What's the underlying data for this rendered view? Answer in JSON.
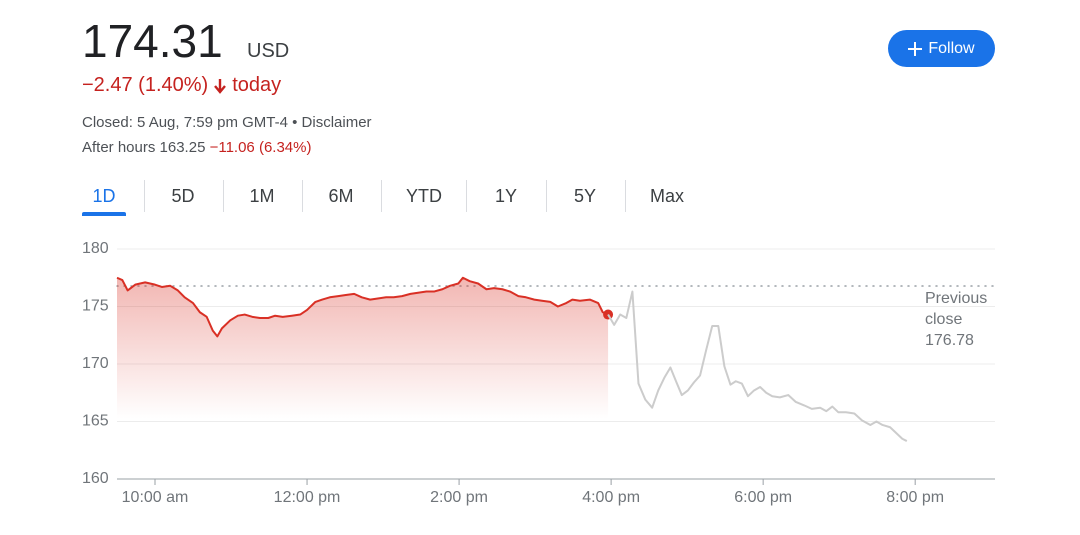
{
  "header": {
    "price": "174.31",
    "currency": "USD",
    "change": "−2.47 (1.40%)",
    "change_suffix": "today",
    "closed": "Closed: 5 Aug, 7:59 pm GMT-4 •",
    "disclaimer": "Disclaimer",
    "after_hours": "After hours 163.25",
    "after_hours_change": "−11.06 (6.34%)",
    "follow": "Follow"
  },
  "tabs": [
    "1D",
    "5D",
    "1M",
    "6M",
    "YTD",
    "1Y",
    "5Y",
    "Max"
  ],
  "chart_data": {
    "type": "line",
    "xlim": [
      9.5,
      21.05
    ],
    "ylim": [
      160,
      180
    ],
    "xticks": [
      {
        "value": 10,
        "label": "10:00 am"
      },
      {
        "value": 12,
        "label": "12:00 pm"
      },
      {
        "value": 14,
        "label": "2:00 pm"
      },
      {
        "value": 16,
        "label": "4:00 pm"
      },
      {
        "value": 18,
        "label": "6:00 pm"
      },
      {
        "value": 20,
        "label": "8:00 pm"
      }
    ],
    "yticks": [
      160,
      165,
      170,
      175,
      180
    ],
    "grid": true,
    "previous_close": 176.78,
    "previous_close_label": "Previous close",
    "series": [
      {
        "color": "#d93025",
        "x": [
          9.5,
          9.57,
          9.64,
          9.74,
          9.87,
          10.0,
          10.09,
          10.2,
          10.3,
          10.39,
          10.5,
          10.59,
          10.68,
          10.76,
          10.82,
          10.88,
          10.99,
          11.09,
          11.18,
          11.28,
          11.38,
          11.49,
          11.58,
          11.68,
          11.8,
          11.91,
          12.0,
          12.11,
          12.2,
          12.3,
          12.41,
          12.51,
          12.62,
          12.72,
          12.83,
          12.93,
          13.04,
          13.14,
          13.25,
          13.36,
          13.46,
          13.57,
          13.67,
          13.78,
          13.88,
          13.99,
          14.05,
          14.14,
          14.25,
          14.36,
          14.46,
          14.57,
          14.67,
          14.78,
          14.88,
          14.99,
          15.09,
          15.2,
          15.3,
          15.41,
          15.49,
          15.59,
          15.72,
          15.83,
          15.89,
          15.96
        ],
        "values": [
          177.5,
          177.3,
          176.4,
          176.9,
          177.1,
          176.9,
          176.7,
          176.8,
          176.4,
          175.8,
          175.3,
          174.5,
          174.1,
          172.9,
          172.4,
          173.1,
          173.8,
          174.2,
          174.3,
          174.1,
          174.0,
          174.0,
          174.2,
          174.1,
          174.2,
          174.3,
          174.7,
          175.4,
          175.6,
          175.8,
          175.9,
          176.0,
          176.1,
          175.8,
          175.6,
          175.7,
          175.8,
          175.8,
          175.9,
          176.1,
          176.2,
          176.3,
          176.3,
          176.5,
          176.8,
          177.0,
          177.5,
          177.2,
          177.0,
          176.5,
          176.6,
          176.5,
          176.3,
          175.9,
          175.8,
          175.6,
          175.5,
          175.4,
          175.0,
          175.3,
          175.6,
          175.5,
          175.6,
          175.3,
          174.5,
          174.3
        ]
      },
      {
        "color": "#cccccc",
        "x": [
          15.96,
          16.04,
          16.12,
          16.2,
          16.28,
          16.36,
          16.45,
          16.54,
          16.62,
          16.7,
          16.78,
          16.86,
          16.93,
          17.01,
          17.09,
          17.17,
          17.25,
          17.33,
          17.41,
          17.49,
          17.57,
          17.64,
          17.72,
          17.8,
          17.88,
          17.96,
          18.04,
          18.12,
          18.22,
          18.33,
          18.43,
          18.54,
          18.64,
          18.75,
          18.83,
          18.91,
          18.99,
          19.09,
          19.2,
          19.3,
          19.41,
          19.49,
          19.57,
          19.67,
          19.75,
          19.83,
          19.89
        ],
        "values": [
          174.3,
          173.4,
          174.3,
          174.0,
          176.3,
          168.3,
          166.9,
          166.2,
          167.7,
          168.8,
          169.7,
          168.4,
          167.3,
          167.7,
          168.4,
          169.0,
          171.2,
          173.3,
          173.3,
          169.8,
          168.2,
          168.5,
          168.3,
          167.2,
          167.7,
          168.0,
          167.5,
          167.2,
          167.1,
          167.3,
          166.7,
          166.4,
          166.1,
          166.2,
          165.9,
          166.3,
          165.8,
          165.8,
          165.7,
          165.1,
          164.7,
          165.0,
          164.7,
          164.5,
          164.0,
          163.5,
          163.3
        ]
      }
    ]
  }
}
